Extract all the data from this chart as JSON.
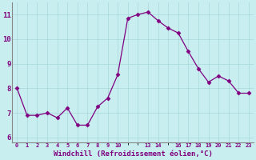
{
  "x": [
    0,
    1,
    2,
    3,
    4,
    5,
    6,
    7,
    8,
    9,
    10,
    11,
    12,
    13,
    14,
    15,
    16,
    17,
    18,
    19,
    20,
    21,
    22,
    23
  ],
  "y": [
    8.0,
    6.9,
    6.9,
    7.0,
    6.8,
    7.2,
    6.5,
    6.5,
    7.25,
    7.6,
    8.55,
    10.85,
    11.0,
    11.1,
    10.75,
    10.45,
    10.25,
    9.5,
    8.8,
    8.25,
    8.5,
    8.3,
    7.8,
    7.8
  ],
  "line_color": "#800080",
  "marker": "D",
  "marker_size": 2.5,
  "bg_color": "#c8eef0",
  "grid_color": "#a8d8da",
  "xlabel": "Windchill (Refroidissement éolien,°C)",
  "xlabel_color": "#800080",
  "tick_color": "#800080",
  "spine_color": "#888888",
  "xlim": [
    -0.5,
    23.5
  ],
  "ylim": [
    5.8,
    11.5
  ],
  "yticks": [
    6,
    7,
    8,
    9,
    10,
    11
  ],
  "xtick_show": [
    0,
    1,
    2,
    3,
    4,
    5,
    6,
    7,
    8,
    9,
    10,
    13,
    14,
    16,
    17,
    18,
    19,
    20,
    21,
    22,
    23
  ],
  "xtick_labels_map": {
    "0": "0",
    "1": "1",
    "2": "2",
    "3": "3",
    "4": "4",
    "5": "5",
    "6": "6",
    "7": "7",
    "8": "8",
    "9": "9",
    "10": "10",
    "13": "13",
    "14": "14",
    "16": "16",
    "17": "17",
    "18": "18",
    "19": "19",
    "20": "20",
    "21": "21",
    "22": "22",
    "23": "23"
  }
}
